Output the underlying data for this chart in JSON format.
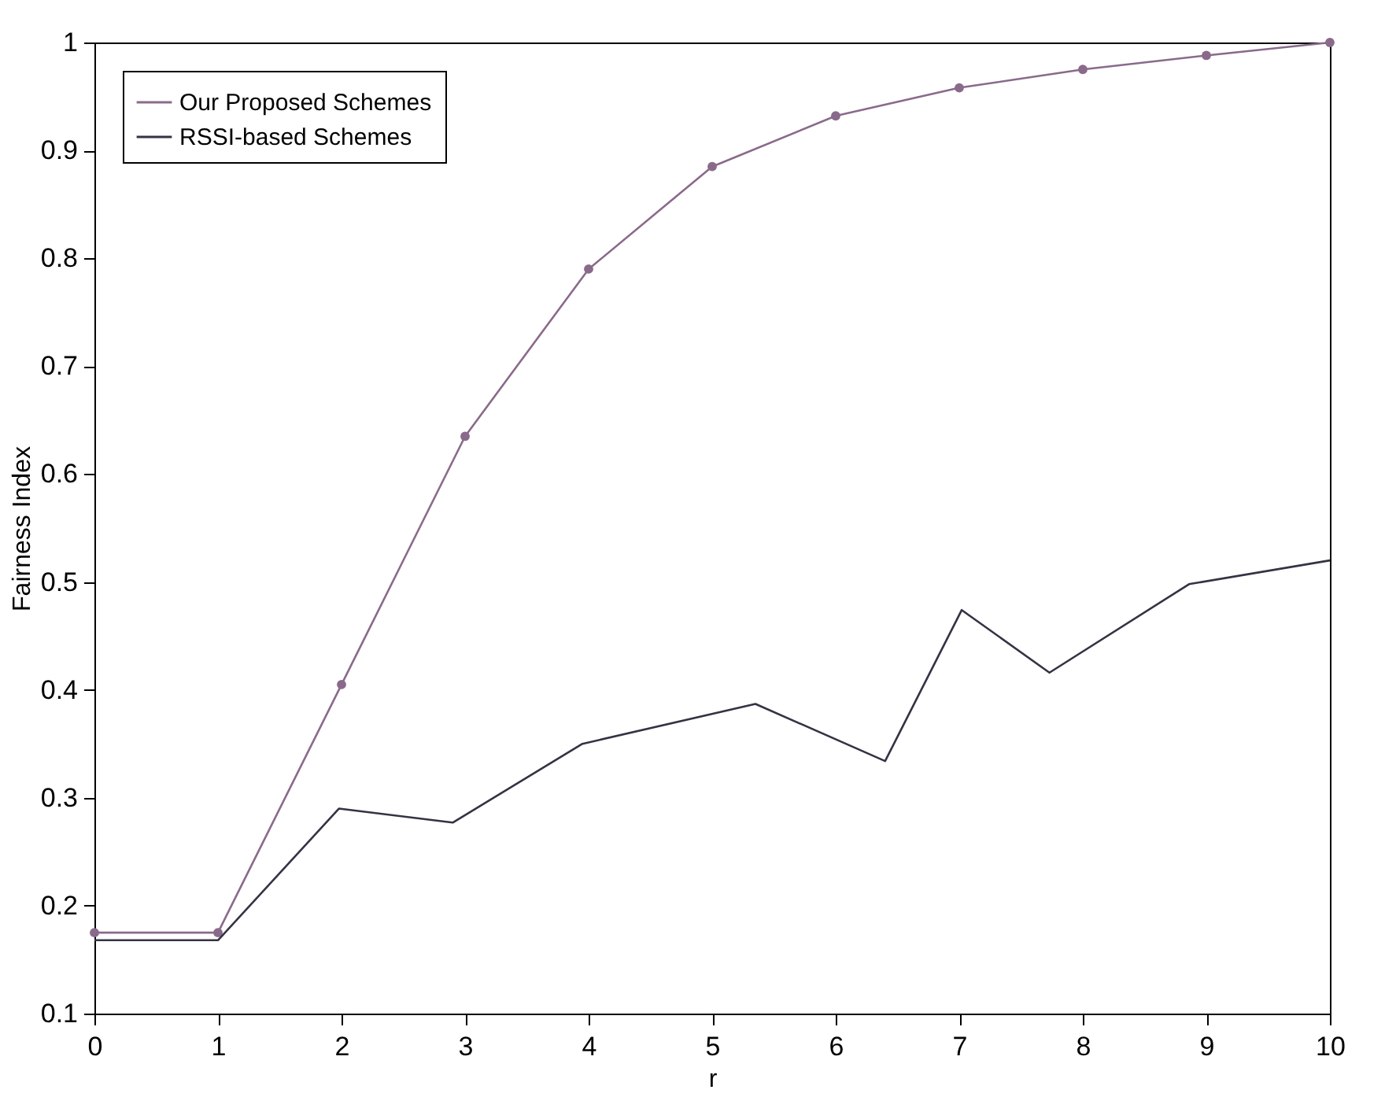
{
  "chart_data": {
    "type": "line",
    "xlabel": "r",
    "ylabel": "Fairness Index",
    "xlim": [
      0,
      10
    ],
    "xticks": [
      0,
      1,
      2,
      3,
      4,
      5,
      6,
      7,
      8,
      9,
      10
    ],
    "ylim": [
      0.1,
      1
    ],
    "yticks": [
      0.1,
      0.2,
      0.3,
      0.4,
      0.5,
      0.6,
      0.7,
      0.8,
      0.9,
      1
    ],
    "grid": false,
    "legend": "top left",
    "series": [
      {
        "name": "Our Proposed Schemes",
        "color": "#8a6a8a",
        "marker": "circle",
        "x": [
          0,
          1,
          2,
          3,
          4,
          5,
          6,
          7,
          8,
          9,
          10
        ],
        "values": [
          0.175,
          0.175,
          0.405,
          0.635,
          0.79,
          0.885,
          0.932,
          0.958,
          0.975,
          0.988,
          1.0
        ]
      },
      {
        "name": "RSSI-based Schemes",
        "color": "#333344",
        "marker": "none",
        "x": [
          0,
          1,
          1.98,
          2.9,
          3.95,
          5.35,
          6.4,
          7.02,
          7.73,
          8.86,
          10
        ],
        "values": [
          0.168,
          0.168,
          0.29,
          0.277,
          0.35,
          0.387,
          0.334,
          0.474,
          0.416,
          0.498,
          0.52
        ]
      }
    ]
  }
}
